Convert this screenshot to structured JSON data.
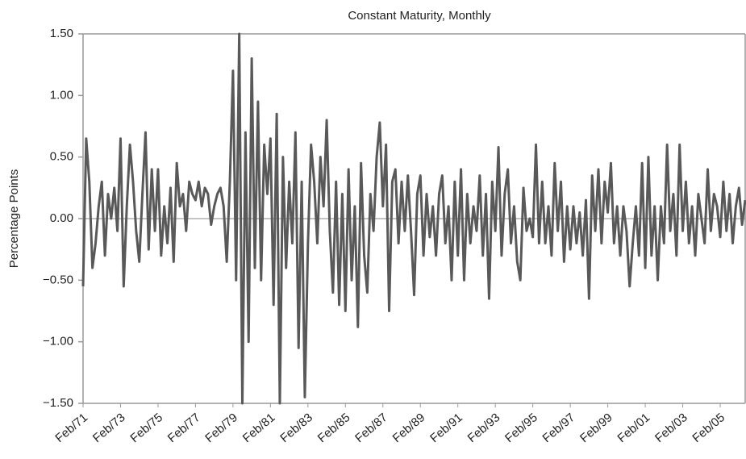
{
  "chart_data": {
    "type": "line",
    "title": "Constant Maturity, Monthly",
    "y_label": "Percentage Points",
    "categories": [
      "Feb/71",
      null,
      null,
      null,
      null,
      null,
      null,
      null,
      null,
      null,
      null,
      null,
      "Feb/73",
      null,
      null,
      null,
      null,
      null,
      null,
      null,
      null,
      null,
      null,
      null,
      "Feb/75",
      null,
      null,
      null,
      null,
      null,
      null,
      null,
      null,
      null,
      null,
      null,
      "Feb/77",
      null,
      null,
      null,
      null,
      null,
      null,
      null,
      null,
      null,
      null,
      null,
      "Feb/79",
      null,
      null,
      null,
      null,
      null,
      null,
      null,
      null,
      null,
      null,
      null,
      "Feb/81",
      null,
      null,
      null,
      null,
      null,
      null,
      null,
      null,
      null,
      null,
      null,
      "Feb/83",
      null,
      null,
      null,
      null,
      null,
      null,
      null,
      null,
      null,
      null,
      null,
      "Feb/85",
      null,
      null,
      null,
      null,
      null,
      null,
      null,
      null,
      null,
      null,
      null,
      "Feb/87",
      null,
      null,
      null,
      null,
      null,
      null,
      null,
      null,
      null,
      null,
      null,
      "Feb/89",
      null,
      null,
      null,
      null,
      null,
      null,
      null,
      null,
      null,
      null,
      null,
      "Feb/91",
      null,
      null,
      null,
      null,
      null,
      null,
      null,
      null,
      null,
      null,
      null,
      "Feb/93",
      null,
      null,
      null,
      null,
      null,
      null,
      null,
      null,
      null,
      null,
      null,
      "Feb/95",
      null,
      null,
      null,
      null,
      null,
      null,
      null,
      null,
      null,
      null,
      null,
      "Feb/97",
      null,
      null,
      null,
      null,
      null,
      null,
      null,
      null,
      null,
      null,
      null,
      "Feb/99",
      null,
      null,
      null,
      null,
      null,
      null,
      null,
      null,
      null,
      null,
      null,
      "Feb/01",
      null,
      null,
      null,
      null,
      null,
      null,
      null,
      null,
      null,
      null,
      null,
      "Feb/03",
      null,
      null,
      null,
      null,
      null,
      null,
      null,
      null,
      null,
      null,
      null,
      "Feb/05",
      null,
      null,
      null,
      null,
      null,
      null,
      null,
      null
    ],
    "values": [
      -0.55,
      0.65,
      0.3,
      -0.4,
      -0.2,
      0.1,
      0.3,
      -0.3,
      0.2,
      0.0,
      0.25,
      -0.1,
      0.65,
      -0.55,
      0.1,
      0.6,
      0.3,
      -0.1,
      -0.35,
      0.2,
      0.7,
      -0.25,
      0.4,
      -0.1,
      0.4,
      -0.3,
      0.1,
      -0.2,
      0.25,
      -0.35,
      0.45,
      0.1,
      0.2,
      -0.1,
      0.3,
      0.2,
      0.15,
      0.3,
      0.1,
      0.25,
      0.2,
      -0.05,
      0.1,
      0.2,
      0.25,
      0.1,
      -0.35,
      0.3,
      1.2,
      -0.5,
      1.5,
      -1.5,
      0.7,
      -1.0,
      1.3,
      -0.4,
      0.95,
      -0.5,
      0.6,
      0.2,
      0.65,
      -0.7,
      0.85,
      -1.5,
      0.5,
      -0.4,
      0.3,
      -0.2,
      0.7,
      -1.05,
      0.3,
      -1.45,
      -0.2,
      0.6,
      0.3,
      -0.2,
      0.5,
      0.1,
      0.8,
      -0.1,
      -0.6,
      0.3,
      -0.7,
      0.2,
      -0.75,
      0.4,
      -0.5,
      0.1,
      -0.88,
      0.45,
      -0.3,
      -0.6,
      0.2,
      -0.1,
      0.5,
      0.78,
      0.1,
      0.6,
      -0.75,
      0.3,
      0.4,
      -0.2,
      0.3,
      -0.1,
      0.35,
      -0.1,
      -0.62,
      0.2,
      0.35,
      -0.3,
      0.2,
      -0.15,
      0.1,
      -0.3,
      0.2,
      0.35,
      -0.2,
      0.1,
      -0.5,
      0.3,
      -0.3,
      0.4,
      -0.5,
      0.2,
      -0.2,
      0.1,
      -0.1,
      0.35,
      -0.3,
      0.2,
      -0.65,
      0.3,
      -0.1,
      0.58,
      -0.3,
      0.2,
      0.4,
      -0.2,
      0.1,
      -0.35,
      -0.5,
      0.25,
      -0.1,
      0.0,
      -0.15,
      0.6,
      -0.2,
      0.3,
      -0.2,
      0.1,
      -0.3,
      0.45,
      -0.1,
      0.3,
      -0.35,
      0.1,
      -0.25,
      0.1,
      -0.2,
      0.05,
      -0.3,
      0.15,
      -0.65,
      0.35,
      -0.1,
      0.4,
      -0.2,
      0.3,
      0.05,
      0.45,
      -0.2,
      0.1,
      -0.3,
      0.1,
      -0.1,
      -0.55,
      -0.2,
      0.1,
      -0.3,
      0.45,
      -0.4,
      0.5,
      -0.3,
      0.1,
      -0.5,
      0.1,
      -0.2,
      0.6,
      -0.1,
      0.2,
      -0.3,
      0.6,
      -0.1,
      0.3,
      -0.2,
      0.1,
      -0.3,
      0.2,
      0.0,
      -0.2,
      0.4,
      -0.1,
      0.2,
      0.1,
      -0.15,
      0.3,
      -0.1,
      0.2,
      -0.2,
      0.1,
      0.25,
      -0.05,
      0.15
    ],
    "color": "#595959",
    "ylim": [
      -1.5,
      1.5
    ],
    "yticks": [
      {
        "value": -1.5,
        "label": "−1.50"
      },
      {
        "value": -1.0,
        "label": "−1.00"
      },
      {
        "value": -0.5,
        "label": "−0.50"
      },
      {
        "value": 0,
        "label": "0.00"
      },
      {
        "value": 0.5,
        "label": "0.50"
      },
      {
        "value": 1.0,
        "label": "1.00"
      },
      {
        "value": 1.5,
        "label": "1.50"
      }
    ],
    "grid": false
  }
}
